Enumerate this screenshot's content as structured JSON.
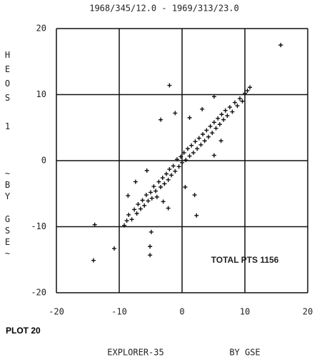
{
  "chart_data": {
    "type": "scatter",
    "title": "1968/345/12.0 - 1969/313/23.0",
    "y_label_top": "HEOS 1",
    "y_label_bottom": "~BY GSE~",
    "x_label_left": "EXPLORER-35",
    "x_label_right": "BY GSE",
    "plot_label": "PLOT 20",
    "annotation": "TOTAL PTS 1156",
    "color": "#111111",
    "xlim": [
      -20,
      20
    ],
    "ylim": [
      -20,
      20
    ],
    "xticks": [
      -20,
      -10,
      0,
      10,
      20
    ],
    "yticks": [
      -20,
      -10,
      0,
      10,
      20
    ],
    "grid": true,
    "x": [
      -9.2,
      -8.8,
      -8.5,
      -8,
      -7.6,
      -7.2,
      -7,
      -6.6,
      -6.3,
      -6,
      -5.7,
      -5.4,
      -5,
      -4.8,
      -4.5,
      -4.2,
      -4,
      -3.7,
      -3.4,
      -3.1,
      -2.8,
      -2.5,
      -2.2,
      -2,
      -1.7,
      -1.4,
      -1.1,
      -0.8,
      -0.5,
      -0.2,
      0,
      0.3,
      0.6,
      0.9,
      1.2,
      1.5,
      1.8,
      2.1,
      2.4,
      2.7,
      3,
      3.3,
      3.6,
      3.9,
      4.2,
      4.5,
      4.8,
      5.1,
      5.4,
      5.7,
      6,
      6.3,
      6.6,
      6.9,
      7.2,
      7.6,
      8,
      8.4,
      8.8,
      9.2,
      9.6,
      10,
      10.4,
      10.8,
      -3,
      -2.2,
      2,
      2.3,
      0.5,
      -8.6,
      -7.4,
      -5.6,
      5.1,
      6.2,
      3.2,
      1.2,
      -2,
      -1.1,
      5.1,
      -3.4,
      15.7,
      -14.1,
      -13.9,
      -10.8,
      -5.1,
      -5.1,
      -4.9
    ],
    "values": [
      -9.8,
      -9.1,
      -8.2,
      -8.9,
      -7.4,
      -8,
      -6.6,
      -7.3,
      -6,
      -6.8,
      -5.2,
      -6.1,
      -4.8,
      -5.7,
      -3.9,
      -4.6,
      -5.5,
      -3.2,
      -4,
      -2.6,
      -3.5,
      -2,
      -2.9,
      -1.3,
      -2.2,
      -0.8,
      -1.6,
      0.2,
      -0.9,
      0.6,
      -0.3,
      1.2,
      0.1,
      1.8,
      0.7,
      2.3,
      1.2,
      2.9,
      1.8,
      3.4,
      2.4,
      4,
      3,
      4.6,
      3.6,
      5.2,
      4.2,
      5.8,
      4.9,
      6.4,
      5.5,
      7,
      6.2,
      7.6,
      6.8,
      8.1,
      7.4,
      8.8,
      8.3,
      9.4,
      9,
      10.2,
      10.6,
      11.1,
      -6.2,
      -7.2,
      -5.2,
      -8.3,
      -4,
      -5.3,
      -3.2,
      -1.5,
      0.8,
      3,
      7.8,
      6.5,
      11.4,
      7.2,
      9.7,
      6.2,
      17.5,
      -15.1,
      -9.7,
      -13.3,
      -13,
      -14.3,
      -10.8
    ]
  }
}
